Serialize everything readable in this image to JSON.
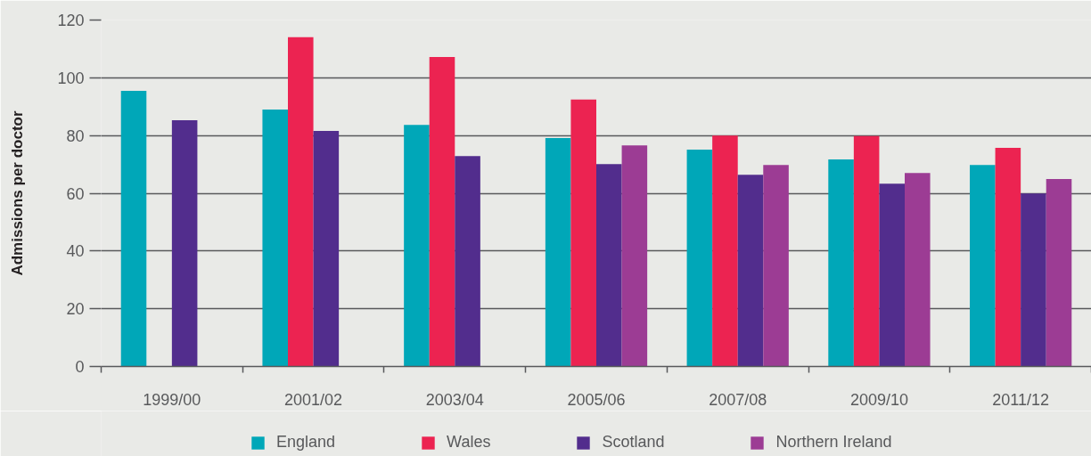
{
  "chart_data": {
    "type": "bar",
    "ylabel": "Admissions per doctor",
    "categories": [
      "1999/00",
      "2001/02",
      "2003/04",
      "2005/06",
      "2007/08",
      "2009/10",
      "2011/12"
    ],
    "series": [
      {
        "name": "England",
        "color": "#00a7b8",
        "values": [
          95.5,
          89.0,
          83.7,
          79.1,
          75.1,
          71.7,
          69.8
        ]
      },
      {
        "name": "Wales",
        "color": "#ec2351",
        "values": [
          null,
          114.1,
          107.2,
          92.5,
          80.0,
          79.8,
          75.7
        ]
      },
      {
        "name": "Scotland",
        "color": "#522d8d",
        "values": [
          85.3,
          81.6,
          72.9,
          70.1,
          66.4,
          63.3,
          59.9
        ]
      },
      {
        "name": "Northern Ireland",
        "color": "#9c3c94",
        "values": [
          null,
          null,
          null,
          76.6,
          69.8,
          67.0,
          64.9
        ]
      }
    ],
    "ylim": [
      0,
      120
    ],
    "yticks": [
      0,
      20,
      40,
      60,
      80,
      100,
      120
    ],
    "grid": "y",
    "legend": "bottom"
  }
}
